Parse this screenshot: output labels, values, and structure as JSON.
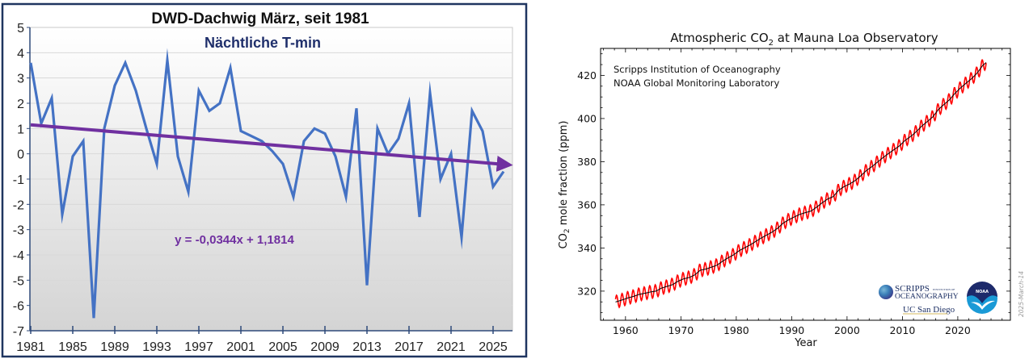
{
  "chart_data": [
    {
      "type": "line",
      "title": "DWD-Dachwig März, seit 1981",
      "subtitle": "Nächtliche T-min",
      "xlabel": "",
      "ylabel": "",
      "x": [
        1981,
        1982,
        1983,
        1984,
        1985,
        1986,
        1987,
        1988,
        1989,
        1990,
        1991,
        1992,
        1993,
        1994,
        1995,
        1996,
        1997,
        1998,
        1999,
        2000,
        2001,
        2002,
        2003,
        2004,
        2005,
        2006,
        2007,
        2008,
        2009,
        2010,
        2011,
        2012,
        2013,
        2014,
        2015,
        2016,
        2017,
        2018,
        2019,
        2020,
        2021,
        2022,
        2023,
        2024,
        2025,
        2026
      ],
      "series": [
        {
          "name": "Nächtliche T-min",
          "color": "#4472c4",
          "values": [
            3.6,
            1.2,
            2.2,
            -2.4,
            -0.1,
            0.5,
            -6.5,
            1.0,
            2.7,
            3.6,
            2.5,
            1.0,
            -0.4,
            3.7,
            -0.1,
            -1.5,
            2.5,
            1.7,
            2.0,
            3.4,
            0.9,
            0.7,
            0.5,
            0.1,
            -0.4,
            -1.7,
            0.5,
            1.0,
            0.8,
            -0.1,
            -1.7,
            1.8,
            -5.2,
            1.0,
            0.0,
            0.6,
            2.0,
            -2.5,
            2.4,
            -1.0,
            0.0,
            -3.3,
            1.7,
            0.9,
            -1.3,
            -0.7
          ]
        }
      ],
      "trendline": {
        "label": "y = -0,0344x + 1,1814",
        "slope": -0.0344,
        "intercept": 1.1814,
        "color": "#7030a0",
        "x_end": 2026.8
      },
      "x_tick_labels": [
        "1981",
        "1985",
        "1989",
        "1993",
        "1997",
        "2001",
        "2005",
        "2009",
        "2013",
        "2017",
        "2021",
        "2025"
      ],
      "y_tick_labels": [
        "5",
        "4",
        "3",
        "2",
        "1",
        "0",
        "-1",
        "-2",
        "-3",
        "-4",
        "-5",
        "-6",
        "-7"
      ],
      "xlim": [
        1981,
        2027
      ],
      "ylim": [
        -7,
        5
      ],
      "grid": true,
      "colors": {
        "frame": "#1f3560",
        "plot_top": "#ffffff",
        "plot_bottom": "#d4d4d4",
        "grid": "#d9d9d9",
        "axis": "#2f4a7a"
      }
    },
    {
      "type": "line",
      "title": "Atmospheric CO₂ at Mauna Loa Observatory",
      "title_parts": {
        "before": "Atmospheric CO",
        "sub": "2",
        "after": " at Mauna Loa Observatory"
      },
      "xlabel": "Year",
      "ylabel_parts": {
        "before": "CO",
        "sub": "2",
        "after": " mole fraction (ppm)"
      },
      "annotations": [
        "Scripps Institution of Oceanography",
        "NOAA Global Monitoring Laboratory"
      ],
      "date_stamp": "2025-March-14",
      "logos": {
        "scripps_line1": "SCRIPPS",
        "scripps_small": "INSTITUTION OF",
        "scripps_line2": "OCEANOGRAPHY",
        "ucsd": "UC San Diego",
        "noaa": "NOAA"
      },
      "x_tick_labels": [
        "1960",
        "1970",
        "1980",
        "1990",
        "2000",
        "2010",
        "2020"
      ],
      "y_tick_labels": [
        "320",
        "340",
        "360",
        "380",
        "400",
        "420"
      ],
      "xlim": [
        1955.5,
        2029.5
      ],
      "ylim": [
        306.5,
        432.5
      ],
      "grid": false,
      "series": [
        {
          "name": "Monthly mean (seasonal cycle)",
          "color": "#ff0000",
          "seasonal_amplitude_ppm": 3.0
        },
        {
          "name": "Seasonally corrected trend",
          "color": "#000000",
          "years": [
            1958,
            1959,
            1960,
            1961,
            1962,
            1963,
            1964,
            1965,
            1966,
            1967,
            1968,
            1969,
            1970,
            1971,
            1972,
            1973,
            1974,
            1975,
            1976,
            1977,
            1978,
            1979,
            1980,
            1981,
            1982,
            1983,
            1984,
            1985,
            1986,
            1987,
            1988,
            1989,
            1990,
            1991,
            1992,
            1993,
            1994,
            1995,
            1996,
            1997,
            1998,
            1999,
            2000,
            2001,
            2002,
            2003,
            2004,
            2005,
            2006,
            2007,
            2008,
            2009,
            2010,
            2011,
            2012,
            2013,
            2014,
            2015,
            2016,
            2017,
            2018,
            2019,
            2020,
            2021,
            2022,
            2023,
            2024,
            2025
          ],
          "values": [
            315.2,
            316.0,
            316.9,
            317.6,
            318.5,
            319.0,
            319.6,
            320.0,
            321.4,
            322.2,
            323.0,
            324.6,
            325.7,
            326.3,
            327.5,
            329.7,
            330.2,
            331.1,
            332.0,
            333.8,
            335.4,
            336.8,
            338.7,
            340.1,
            341.4,
            343.0,
            344.6,
            346.0,
            347.4,
            349.2,
            351.6,
            353.1,
            354.4,
            355.6,
            356.4,
            357.1,
            358.9,
            360.9,
            362.7,
            363.8,
            366.8,
            368.5,
            369.7,
            371.3,
            373.5,
            375.9,
            377.7,
            379.8,
            381.9,
            383.8,
            385.6,
            387.4,
            389.9,
            391.7,
            393.9,
            396.5,
            398.6,
            400.8,
            404.2,
            406.5,
            408.7,
            411.7,
            414.2,
            416.4,
            418.5,
            421.1,
            424.6,
            426.8
          ]
        }
      ]
    }
  ]
}
